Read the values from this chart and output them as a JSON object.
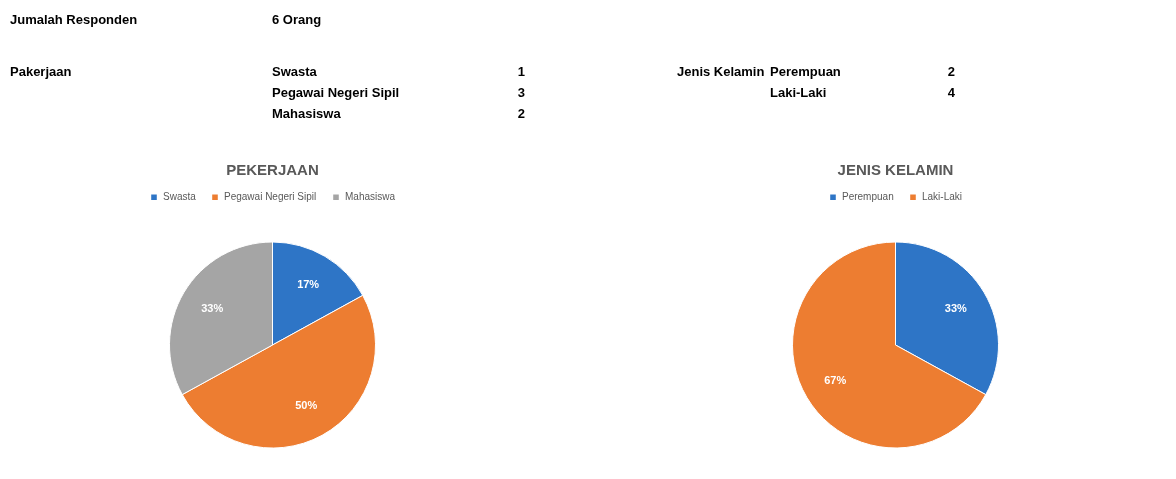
{
  "chart_data": [
    {
      "type": "other",
      "annotations": [
        "Jumalah Responden",
        "6 Orang",
        "Pakerjaan",
        "Swasta",
        "1",
        "Pegawai Negeri Sipil",
        "3",
        "Mahasiswa",
        "2",
        "Jenis Kelamin",
        "Perempuan",
        "2",
        "Laki-Laki",
        "4"
      ]
    },
    {
      "type": "pie",
      "title": "PEKERJAAN",
      "categories": [
        "Swasta",
        "Pegawai Negeri Sipil",
        "Mahasiswa"
      ],
      "values": [
        17,
        50,
        33
      ],
      "colors": [
        "#2e75c6",
        "#ed7d31",
        "#a5a5a5"
      ],
      "value_labels": [
        "17%",
        "50%",
        "33%"
      ],
      "legend": "top"
    },
    {
      "type": "pie",
      "title": "JENIS KELAMIN",
      "categories": [
        "Perempuan",
        "Laki-Laki"
      ],
      "values": [
        33,
        67
      ],
      "colors": [
        "#2e75c6",
        "#ed7d31"
      ],
      "value_labels": [
        "33%",
        "67%"
      ],
      "legend": "top"
    }
  ]
}
